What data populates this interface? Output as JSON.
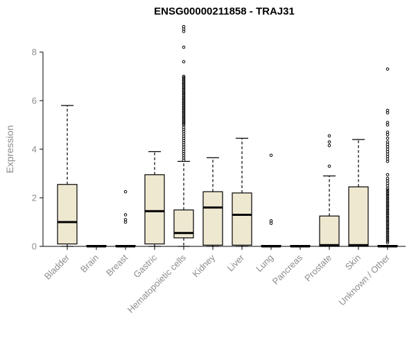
{
  "chart": {
    "title": "ENSG00000211858 - TRAJ31",
    "ylabel": "Expression"
  },
  "chart_data": {
    "type": "boxplot",
    "title": "ENSG00000211858 - TRAJ31",
    "xlabel": "",
    "ylabel": "Expression",
    "ylim": [
      0,
      9.2
    ],
    "yticks": [
      0,
      2,
      4,
      6,
      8
    ],
    "grid": false,
    "legend": "none",
    "categories": [
      "Bladder",
      "Brain",
      "Breast",
      "Gastric",
      "Hematopoietic cells",
      "Kidney",
      "Liver",
      "Lung",
      "Pancreas",
      "Prostate",
      "Skin",
      "Unknown / Other"
    ],
    "groups": [
      {
        "label": "Bladder",
        "whisker_low": 0,
        "q1": 0.1,
        "median": 1.0,
        "q3": 2.55,
        "whisker_high": 5.8,
        "outliers": []
      },
      {
        "label": "Brain",
        "whisker_low": 0,
        "q1": 0,
        "median": 0,
        "q3": 0.04,
        "whisker_high": 0.04,
        "outliers": []
      },
      {
        "label": "Breast",
        "whisker_low": 0,
        "q1": 0,
        "median": 0,
        "q3": 0.04,
        "whisker_high": 0.04,
        "outliers": [
          1.0,
          1.1,
          1.3,
          2.25
        ]
      },
      {
        "label": "Gastric",
        "whisker_low": 0,
        "q1": 0.1,
        "median": 1.45,
        "q3": 2.95,
        "whisker_high": 3.9,
        "outliers": []
      },
      {
        "label": "Hematopoietic cells",
        "whisker_low": 0,
        "q1": 0.35,
        "median": 0.55,
        "q3": 1.5,
        "whisker_high": 3.5,
        "outliers": [
          3.55,
          3.64,
          3.73,
          3.82,
          3.91,
          4.0,
          4.09,
          4.18,
          4.27,
          4.36,
          4.45,
          4.54,
          4.63,
          4.72,
          4.81,
          4.9,
          5.0,
          5.05,
          5.1,
          5.15,
          5.2,
          5.25,
          5.3,
          5.35,
          5.4,
          5.45,
          5.5,
          5.55,
          5.6,
          5.65,
          5.7,
          5.75,
          5.8,
          5.85,
          5.9,
          5.95,
          6.0,
          6.05,
          6.1,
          6.15,
          6.2,
          6.25,
          6.3,
          6.35,
          6.4,
          6.45,
          6.5,
          6.55,
          6.6,
          6.65,
          6.7,
          6.75,
          6.8,
          6.85,
          6.9,
          6.95,
          7.0,
          7.6,
          8.2,
          8.85,
          8.95,
          9.05
        ]
      },
      {
        "label": "Kidney",
        "whisker_low": 0,
        "q1": 0.05,
        "median": 1.6,
        "q3": 2.25,
        "whisker_high": 3.65,
        "outliers": []
      },
      {
        "label": "Liver",
        "whisker_low": 0,
        "q1": 0.05,
        "median": 1.3,
        "q3": 2.2,
        "whisker_high": 4.45,
        "outliers": []
      },
      {
        "label": "Lung",
        "whisker_low": 0,
        "q1": 0,
        "median": 0,
        "q3": 0.04,
        "whisker_high": 0.04,
        "outliers": [
          0.95,
          1.05,
          3.75
        ]
      },
      {
        "label": "Pancreas",
        "whisker_low": 0,
        "q1": 0,
        "median": 0,
        "q3": 0.04,
        "whisker_high": 0.04,
        "outliers": []
      },
      {
        "label": "Prostate",
        "whisker_low": 0,
        "q1": 0,
        "median": 0.05,
        "q3": 1.25,
        "whisker_high": 2.9,
        "outliers": [
          3.3,
          4.15,
          4.3,
          4.55
        ]
      },
      {
        "label": "Skin",
        "whisker_low": 0,
        "q1": 0,
        "median": 0.05,
        "q3": 2.45,
        "whisker_high": 4.4,
        "outliers": []
      },
      {
        "label": "Unknown / Other",
        "whisker_low": 0,
        "q1": 0,
        "median": 0,
        "q3": 0.04,
        "whisker_high": 0.04,
        "outliers": [
          0.15,
          0.22,
          0.29,
          0.36,
          0.43,
          0.5,
          0.57,
          0.64,
          0.71,
          0.78,
          0.85,
          0.92,
          0.99,
          1.06,
          1.13,
          1.2,
          1.27,
          1.34,
          1.41,
          1.48,
          1.55,
          1.62,
          1.69,
          1.76,
          1.83,
          1.9,
          1.97,
          2.04,
          2.11,
          2.18,
          2.25,
          2.32,
          2.39,
          2.5,
          2.6,
          2.7,
          2.8,
          2.95,
          3.5,
          3.6,
          3.7,
          3.8,
          3.9,
          4.0,
          4.1,
          4.2,
          4.3,
          4.45,
          4.6,
          4.7,
          5.0,
          5.1,
          5.5,
          5.6,
          7.3
        ]
      }
    ],
    "colors": {
      "box_fill": "#efe8d1",
      "box_border": "#000000",
      "median": "#000000",
      "whisker": "#000000",
      "outlier": "#000000",
      "axis": "#000000",
      "tick_label": "#8c8c8c",
      "title": "#000000",
      "background": "#ffffff"
    }
  }
}
